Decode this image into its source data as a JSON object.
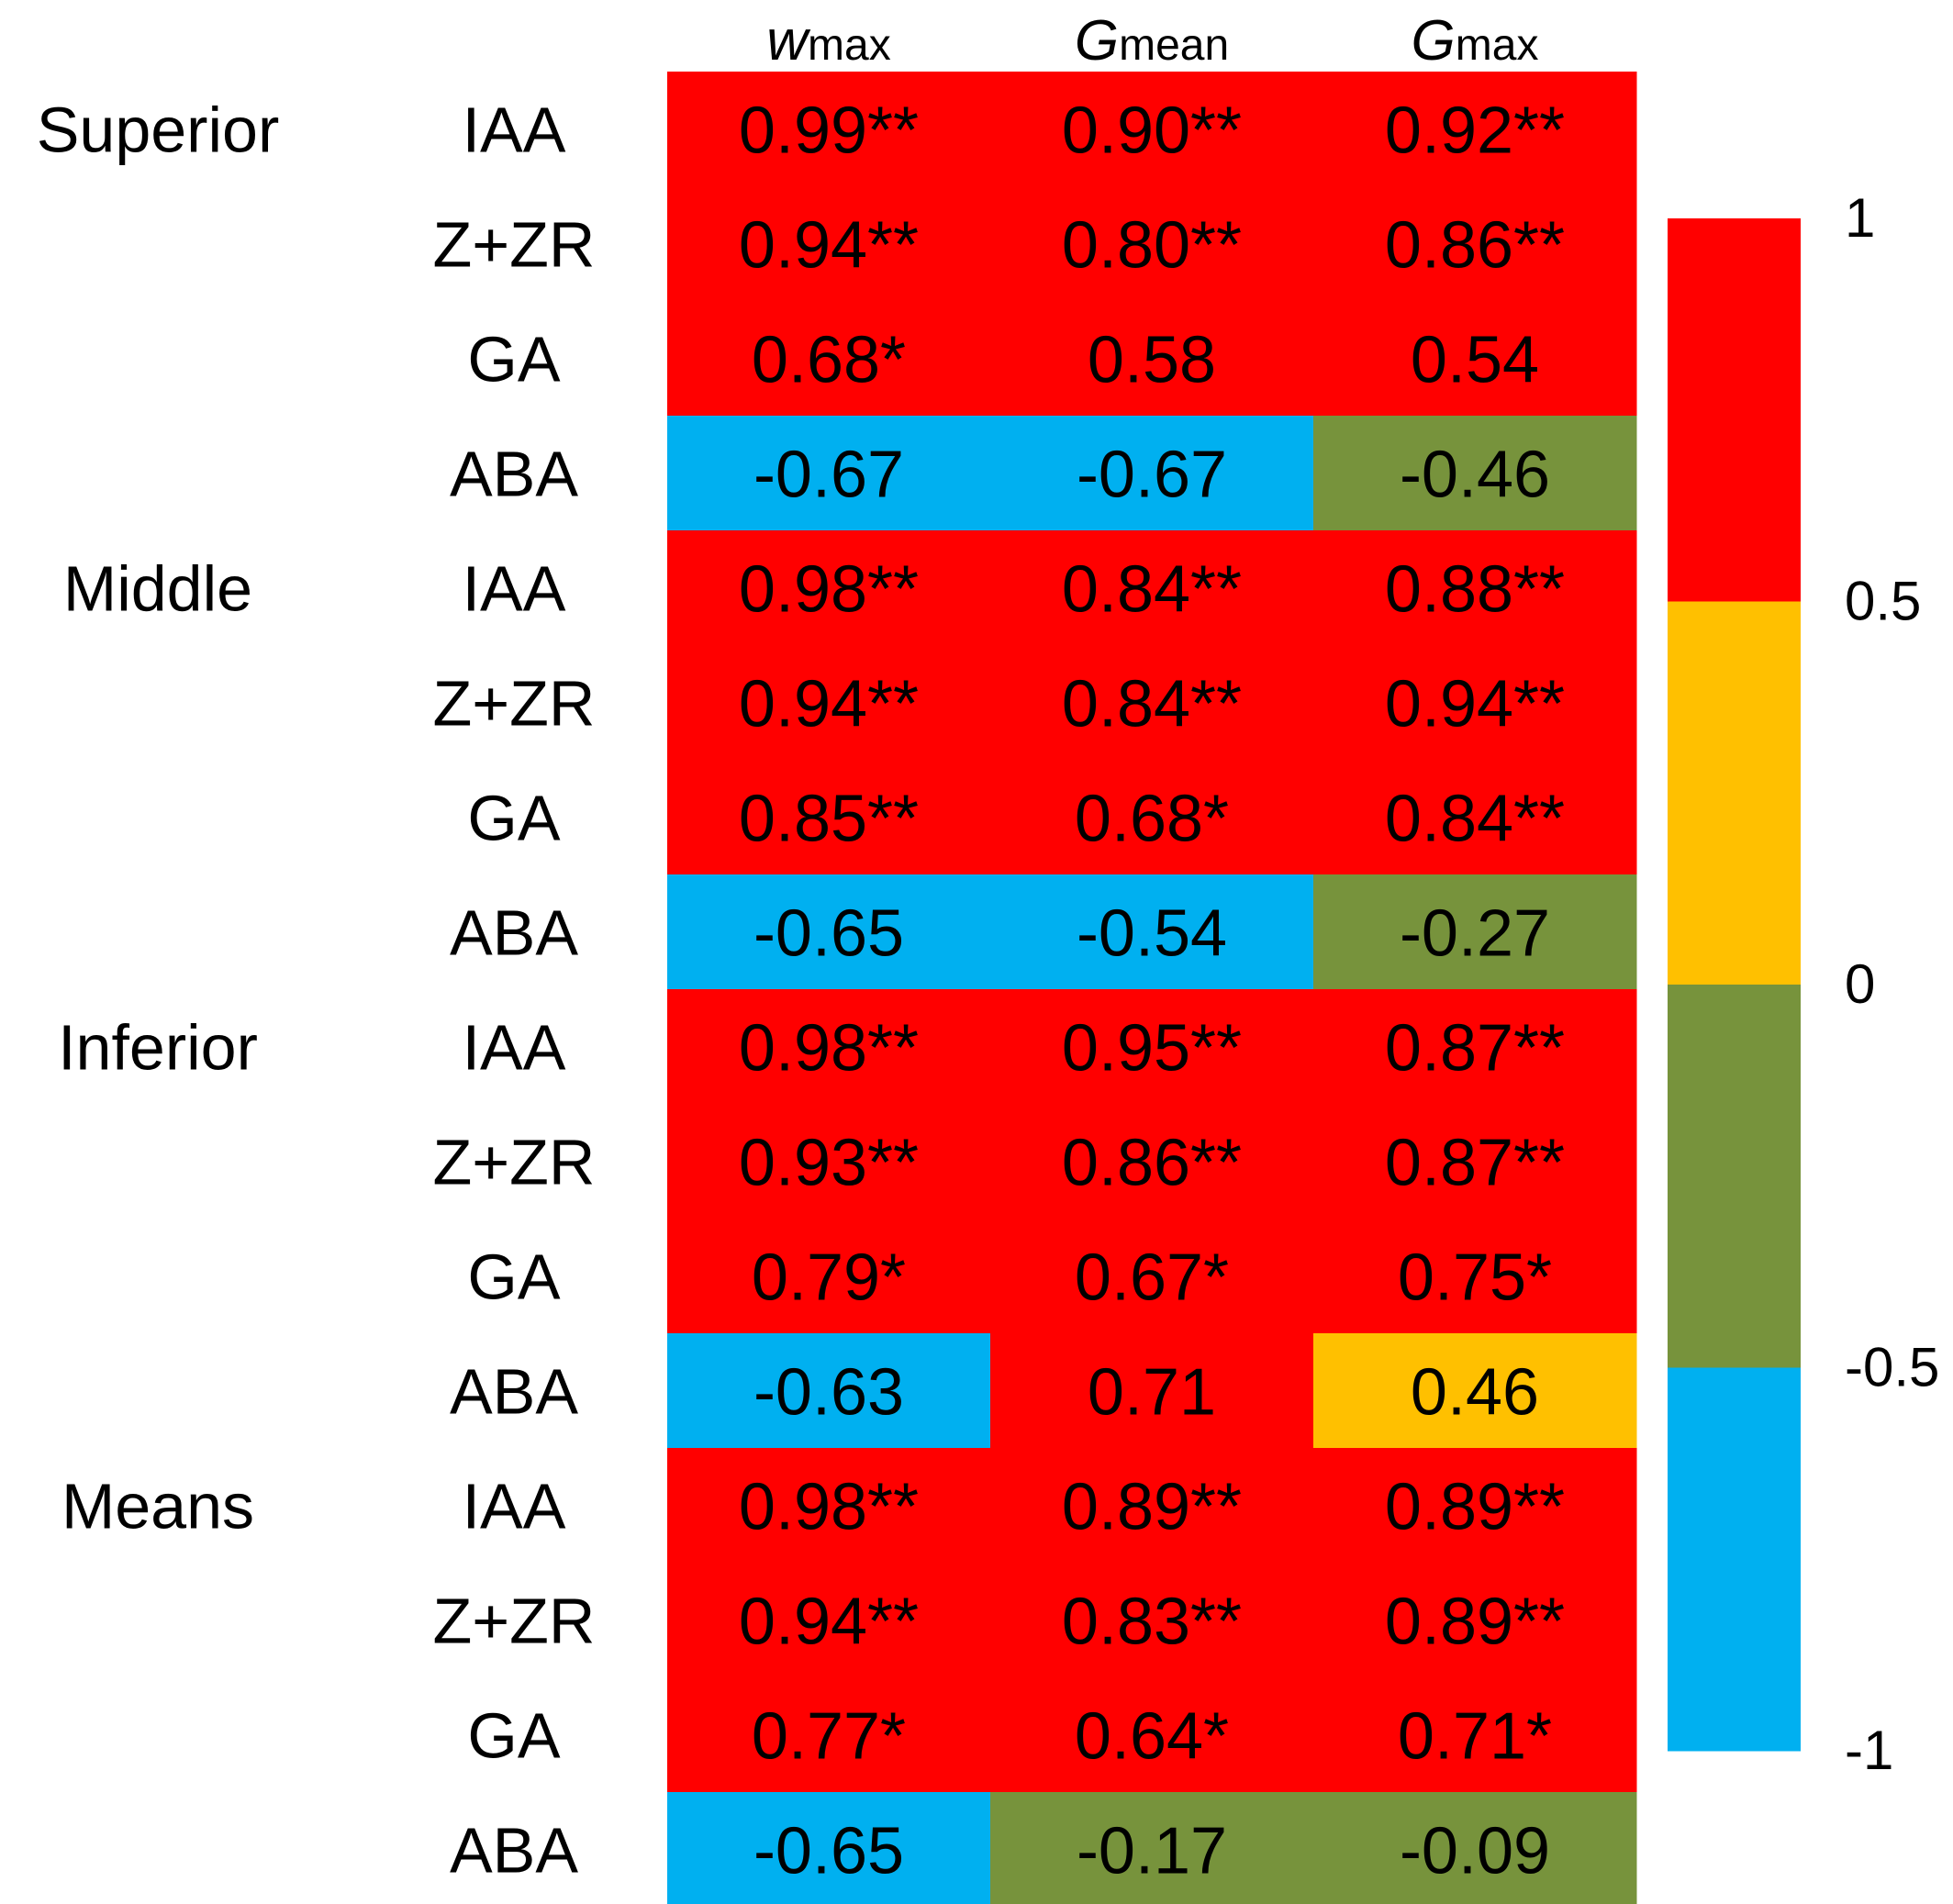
{
  "chart_data": {
    "type": "heatmap",
    "columns": [
      {
        "main": "w",
        "sub": "max"
      },
      {
        "main": "G",
        "sub": "mean"
      },
      {
        "main": "G",
        "sub": "max"
      }
    ],
    "groups": [
      {
        "name": "Superior",
        "rows": [
          {
            "name": "IAA",
            "cells": [
              {
                "value": 0.99,
                "label": "0.99**"
              },
              {
                "value": 0.9,
                "label": "0.90**"
              },
              {
                "value": 0.92,
                "label": "0.92**"
              }
            ]
          },
          {
            "name": "Z+ZR",
            "cells": [
              {
                "value": 0.94,
                "label": "0.94**"
              },
              {
                "value": 0.8,
                "label": "0.80**"
              },
              {
                "value": 0.86,
                "label": "0.86**"
              }
            ]
          },
          {
            "name": "GA",
            "cells": [
              {
                "value": 0.68,
                "label": "0.68*"
              },
              {
                "value": 0.58,
                "label": "0.58"
              },
              {
                "value": 0.54,
                "label": "0.54"
              }
            ]
          },
          {
            "name": "ABA",
            "cells": [
              {
                "value": -0.67,
                "label": "-0.67"
              },
              {
                "value": -0.67,
                "label": "-0.67"
              },
              {
                "value": -0.46,
                "label": "-0.46"
              }
            ]
          }
        ]
      },
      {
        "name": "Middle",
        "rows": [
          {
            "name": "IAA",
            "cells": [
              {
                "value": 0.98,
                "label": "0.98**"
              },
              {
                "value": 0.84,
                "label": "0.84**"
              },
              {
                "value": 0.88,
                "label": "0.88**"
              }
            ]
          },
          {
            "name": "Z+ZR",
            "cells": [
              {
                "value": 0.94,
                "label": "0.94**"
              },
              {
                "value": 0.84,
                "label": "0.84**"
              },
              {
                "value": 0.94,
                "label": "0.94**"
              }
            ]
          },
          {
            "name": "GA",
            "cells": [
              {
                "value": 0.85,
                "label": "0.85**"
              },
              {
                "value": 0.68,
                "label": "0.68*"
              },
              {
                "value": 0.84,
                "label": "0.84**"
              }
            ]
          },
          {
            "name": "ABA",
            "cells": [
              {
                "value": -0.65,
                "label": "-0.65"
              },
              {
                "value": -0.54,
                "label": "-0.54"
              },
              {
                "value": -0.27,
                "label": "-0.27"
              }
            ]
          }
        ]
      },
      {
        "name": "Inferior",
        "rows": [
          {
            "name": "IAA",
            "cells": [
              {
                "value": 0.98,
                "label": "0.98**"
              },
              {
                "value": 0.95,
                "label": "0.95**"
              },
              {
                "value": 0.87,
                "label": "0.87**"
              }
            ]
          },
          {
            "name": "Z+ZR",
            "cells": [
              {
                "value": 0.93,
                "label": "0.93**"
              },
              {
                "value": 0.86,
                "label": "0.86**"
              },
              {
                "value": 0.87,
                "label": "0.87**"
              }
            ]
          },
          {
            "name": "GA",
            "cells": [
              {
                "value": 0.79,
                "label": "0.79*"
              },
              {
                "value": 0.67,
                "label": "0.67*"
              },
              {
                "value": 0.75,
                "label": "0.75*"
              }
            ]
          },
          {
            "name": "ABA",
            "cells": [
              {
                "value": -0.63,
                "label": "-0.63"
              },
              {
                "value": 0.71,
                "label": "0.71"
              },
              {
                "value": 0.46,
                "label": "0.46"
              }
            ]
          }
        ]
      },
      {
        "name": "Means",
        "rows": [
          {
            "name": "IAA",
            "cells": [
              {
                "value": 0.98,
                "label": "0.98**"
              },
              {
                "value": 0.89,
                "label": "0.89**"
              },
              {
                "value": 0.89,
                "label": "0.89**"
              }
            ]
          },
          {
            "name": "Z+ZR",
            "cells": [
              {
                "value": 0.94,
                "label": "0.94**"
              },
              {
                "value": 0.83,
                "label": "0.83**"
              },
              {
                "value": 0.89,
                "label": "0.89**"
              }
            ]
          },
          {
            "name": "GA",
            "cells": [
              {
                "value": 0.77,
                "label": "0.77*"
              },
              {
                "value": 0.64,
                "label": "0.64*"
              },
              {
                "value": 0.71,
                "label": "0.71*"
              }
            ]
          },
          {
            "name": "ABA",
            "cells": [
              {
                "value": -0.65,
                "label": "-0.65"
              },
              {
                "value": -0.17,
                "label": "-0.17"
              },
              {
                "value": -0.09,
                "label": "-0.09"
              }
            ]
          }
        ]
      }
    ],
    "colorbar": {
      "range": [
        -1,
        1
      ],
      "ticks": [
        {
          "value": 1,
          "label": "1"
        },
        {
          "value": 0.5,
          "label": "0.5"
        },
        {
          "value": 0,
          "label": "0"
        },
        {
          "value": -0.5,
          "label": "-0.5"
        },
        {
          "value": -1,
          "label": "-1"
        }
      ],
      "bins": [
        {
          "from": 0.5,
          "to": 1,
          "color": "#ff0000"
        },
        {
          "from": 0,
          "to": 0.5,
          "color": "#ffc000"
        },
        {
          "from": -0.5,
          "to": 0,
          "color": "#77933c"
        },
        {
          "from": -1,
          "to": -0.5,
          "color": "#00b0f0"
        }
      ]
    }
  }
}
